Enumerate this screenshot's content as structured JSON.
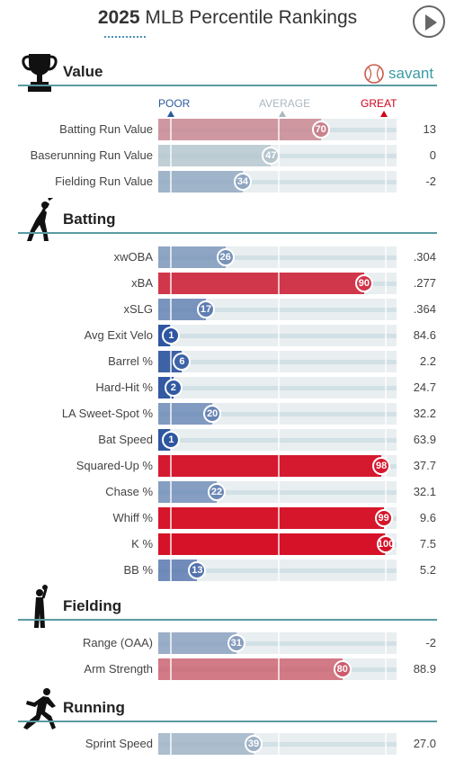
{
  "header": {
    "year": "2025",
    "title": "MLB Percentile Rankings",
    "brand": "savant"
  },
  "legend": {
    "poor": "POOR",
    "average": "AVERAGE",
    "great": "GREAT"
  },
  "chart_data": {
    "type": "bar",
    "title": "2025 MLB Percentile Rankings",
    "xlim": [
      0,
      100
    ],
    "sections": [
      {
        "name": "Value",
        "icon": "trophy-icon",
        "rows": [
          {
            "label": "Batting Run Value",
            "percentile": 70,
            "value": "13"
          },
          {
            "label": "Baserunning Run Value",
            "percentile": 47,
            "value": "0"
          },
          {
            "label": "Fielding Run Value",
            "percentile": 34,
            "value": "-2"
          }
        ]
      },
      {
        "name": "Batting",
        "icon": "batter-icon",
        "rows": [
          {
            "label": "xwOBA",
            "percentile": 26,
            "value": ".304"
          },
          {
            "label": "xBA",
            "percentile": 90,
            "value": ".277"
          },
          {
            "label": "xSLG",
            "percentile": 17,
            "value": ".364"
          },
          {
            "label": "Avg Exit Velo",
            "percentile": 1,
            "value": "84.6"
          },
          {
            "label": "Barrel %",
            "percentile": 6,
            "value": "2.2"
          },
          {
            "label": "Hard-Hit %",
            "percentile": 2,
            "value": "24.7"
          },
          {
            "label": "LA Sweet-Spot %",
            "percentile": 20,
            "value": "32.2"
          },
          {
            "label": "Bat Speed",
            "percentile": 1,
            "value": "63.9"
          },
          {
            "label": "Squared-Up %",
            "percentile": 98,
            "value": "37.7"
          },
          {
            "label": "Chase %",
            "percentile": 22,
            "value": "32.1"
          },
          {
            "label": "Whiff %",
            "percentile": 99,
            "value": "9.6"
          },
          {
            "label": "K %",
            "percentile": 100,
            "value": "7.5"
          },
          {
            "label": "BB %",
            "percentile": 13,
            "value": "5.2"
          }
        ]
      },
      {
        "name": "Fielding",
        "icon": "fielder-icon",
        "rows": [
          {
            "label": "Range (OAA)",
            "percentile": 31,
            "value": "-2"
          },
          {
            "label": "Arm Strength",
            "percentile": 80,
            "value": "88.9"
          }
        ]
      },
      {
        "name": "Running",
        "icon": "runner-icon",
        "rows": [
          {
            "label": "Sprint Speed",
            "percentile": 39,
            "value": "27.0"
          }
        ]
      }
    ]
  }
}
